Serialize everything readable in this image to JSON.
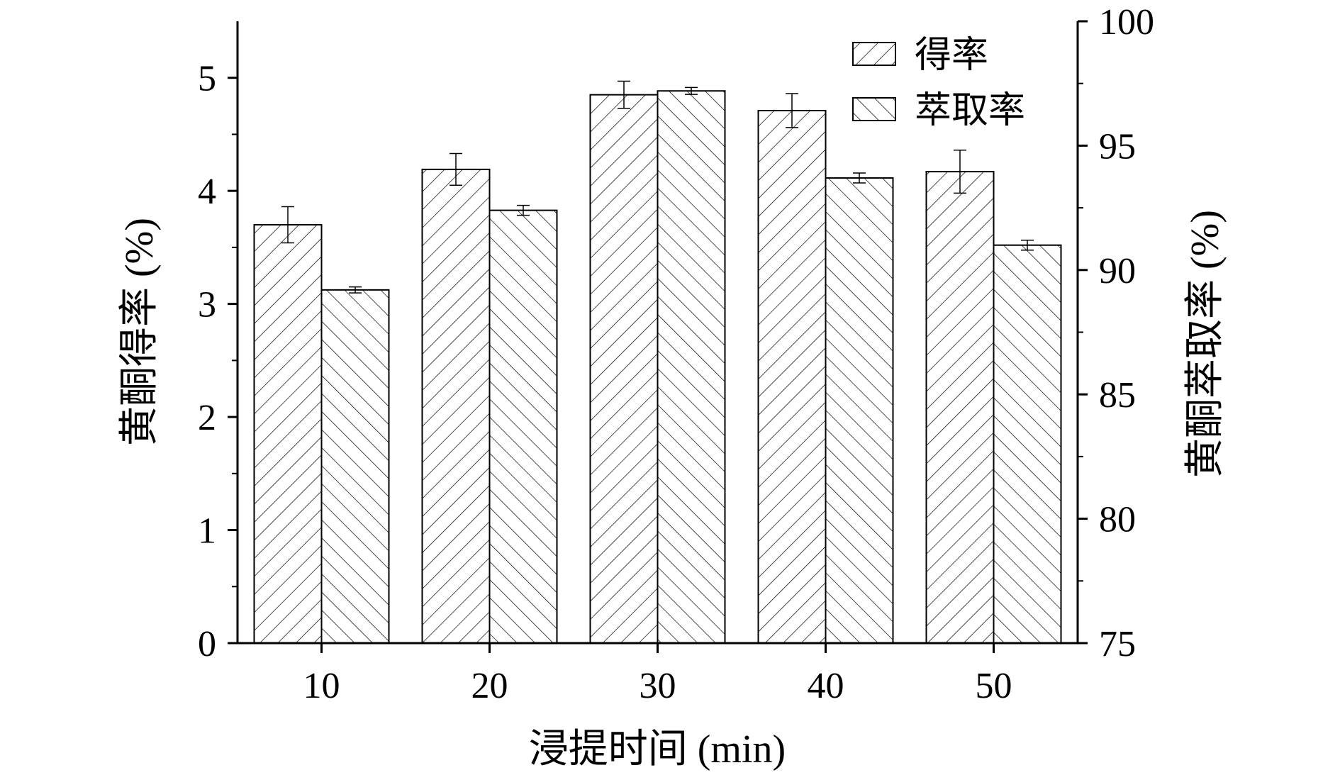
{
  "chart_data": {
    "type": "bar",
    "categories": [
      "10",
      "20",
      "30",
      "40",
      "50"
    ],
    "xlabel": "浸提时间 (min)",
    "ylabel_left": "黄酮得率 (%)",
    "ylabel_right": "黄酮萃取率 (%)",
    "ylim_left": [
      0,
      5.5
    ],
    "yticks_left": [
      "0",
      "1",
      "2",
      "3",
      "4",
      "5"
    ],
    "ylim_right": [
      75,
      100
    ],
    "yticks_right": [
      "75",
      "80",
      "85",
      "90",
      "95",
      "100"
    ],
    "legend_position": "top-right",
    "series": [
      {
        "name": "得率",
        "axis": "left",
        "pattern": "forward-hatch",
        "values": [
          3.7,
          4.19,
          4.85,
          4.71,
          4.17
        ],
        "errors": [
          0.16,
          0.14,
          0.12,
          0.15,
          0.19
        ]
      },
      {
        "name": "萃取率",
        "axis": "right",
        "pattern": "backward-hatch",
        "values": [
          89.2,
          92.4,
          97.2,
          93.7,
          91.0
        ],
        "errors": [
          0.12,
          0.2,
          0.14,
          0.2,
          0.2
        ]
      }
    ]
  }
}
